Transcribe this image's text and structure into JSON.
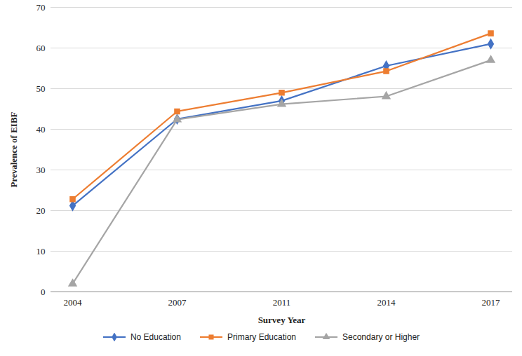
{
  "chart_data": {
    "type": "line",
    "x_label": "Survey Year",
    "y_label": "Prevalence of EIBF",
    "categories": [
      "2004",
      "2007",
      "2011",
      "2014",
      "2017"
    ],
    "series": [
      {
        "name": "No Education",
        "color": "#4472c4",
        "marker": "diamond",
        "values": [
          21.2,
          42.5,
          47.0,
          55.6,
          61.0
        ]
      },
      {
        "name": "Primary Education",
        "color": "#ed7d31",
        "marker": "square",
        "values": [
          22.8,
          44.4,
          49.0,
          54.3,
          63.6
        ]
      },
      {
        "name": "Secondary or Higher",
        "color": "#a5a5a5",
        "marker": "triangle",
        "values": [
          2.0,
          42.4,
          46.2,
          48.1,
          57.0
        ]
      }
    ],
    "ylim": [
      0,
      70
    ],
    "yticks": [
      0,
      10,
      20,
      30,
      40,
      50,
      60,
      70
    ],
    "grid": true,
    "legend": "bottom"
  }
}
